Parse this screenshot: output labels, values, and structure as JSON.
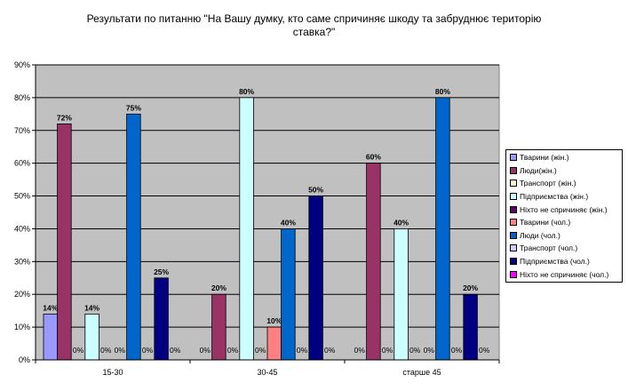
{
  "chart_data": {
    "type": "bar",
    "title": "Результати по питанню \"На Вашу думку, кто саме спричиняє шкоду та забруднює територію ставка?\"",
    "title_lines": [
      "Результати по питанню \"На Вашу думку, кто саме спричиняє шкоду та забруднює територію",
      "ставка?\""
    ],
    "categories": [
      "15-30",
      "30-45",
      "старше 45"
    ],
    "y_ticks": [
      "0%",
      "10%",
      "20%",
      "30%",
      "40%",
      "50%",
      "60%",
      "70%",
      "80%",
      "90%"
    ],
    "ylim": [
      0,
      90
    ],
    "grid": true,
    "legend_position": "right",
    "series": [
      {
        "name": "Тварини (жін.)",
        "color": "#9999ff",
        "values": [
          14,
          0,
          0
        ],
        "labels": [
          "14%",
          "0%",
          "0%"
        ]
      },
      {
        "name": "Люди(жін.)",
        "color": "#993366",
        "values": [
          72,
          20,
          60
        ],
        "labels": [
          "72%",
          "20%",
          "60%"
        ]
      },
      {
        "name": "Транспорт (жін.)",
        "color": "#ffffcc",
        "values": [
          0,
          0,
          0
        ],
        "labels": [
          "0%",
          "0%",
          "0%"
        ]
      },
      {
        "name": "Підприємства (жін.)",
        "color": "#ccffff",
        "values": [
          14,
          80,
          40
        ],
        "labels": [
          "14%",
          "80%",
          "40%"
        ]
      },
      {
        "name": "Ніхто не спричиняє (жін.)",
        "color": "#660066",
        "values": [
          0,
          0,
          0
        ],
        "labels": [
          "0%",
          "0%",
          "0%"
        ]
      },
      {
        "name": "Тварини (чол.)",
        "color": "#ff8080",
        "values": [
          0,
          10,
          0
        ],
        "labels": [
          "0%",
          "10%",
          "0%"
        ]
      },
      {
        "name": "Люди (чол.)",
        "color": "#0066cc",
        "values": [
          75,
          40,
          80
        ],
        "labels": [
          "75%",
          "40%",
          "80%"
        ]
      },
      {
        "name": "Транспорт (чол.)",
        "color": "#ccccff",
        "values": [
          0,
          0,
          0
        ],
        "labels": [
          "0%",
          "0%",
          "0%"
        ]
      },
      {
        "name": "Підприємства (чол.)",
        "color": "#000080",
        "values": [
          25,
          50,
          20
        ],
        "labels": [
          "25%",
          "50%",
          "20%"
        ]
      },
      {
        "name": "Ніхто не спричиняє (чол.)",
        "color": "#ff00ff",
        "values": [
          0,
          0,
          0
        ],
        "labels": [
          "0%",
          "0%",
          "0%"
        ]
      }
    ]
  }
}
